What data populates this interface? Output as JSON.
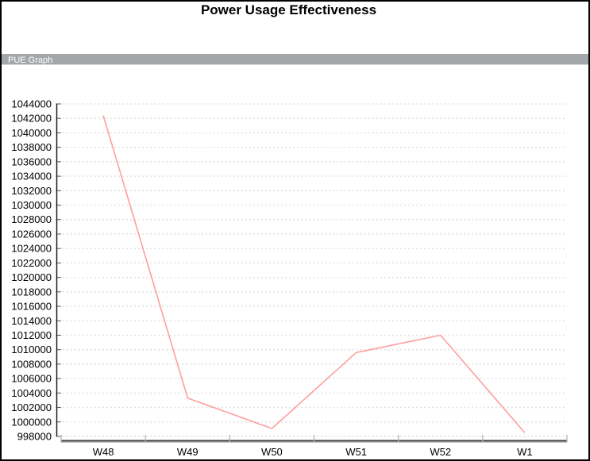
{
  "page": {
    "title": "Power Usage Effectiveness",
    "section_label": "PUE Graph"
  },
  "colors": {
    "line": "#ff9d9d",
    "grid": "#dedede",
    "y_axis": "#1a1a1a",
    "x_axis": "#3f3f3f",
    "x_axis_shadow": "#a9a9a9",
    "tick": "#555555",
    "x_tick": "#b5b5b5",
    "label_text": "#000000",
    "header_bar_bg": "#a3a7aa",
    "header_bar_text": "#ffffff"
  },
  "chart_data": {
    "type": "line",
    "title": "Power Usage Effectiveness",
    "subtitle": "PUE Graph",
    "categories": [
      "W48",
      "W49",
      "W50",
      "W51",
      "W52",
      "W1"
    ],
    "values": [
      1042400,
      1003300,
      999100,
      1009600,
      1012000,
      998500
    ],
    "xlabel": "",
    "ylabel": "",
    "ylim": [
      998000,
      1044000
    ],
    "ytick_step": 2000,
    "grid": "horizontal-dashed",
    "legend": "none"
  }
}
